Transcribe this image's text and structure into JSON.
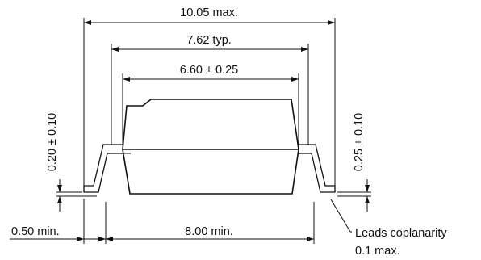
{
  "dimensions": {
    "overall_width": "10.05 max.",
    "lead_pitch": "7.62 typ.",
    "body_width": "6.60 ± 0.25",
    "lead_span": "8.00 min.",
    "lead_foot": "0.50 min.",
    "standoff": "0.20 ± 0.10",
    "lead_thickness": "0.25 ± 0.10"
  },
  "notes": {
    "coplanarity_line1": "Leads coplanarity",
    "coplanarity_line2": "0.1 max."
  }
}
